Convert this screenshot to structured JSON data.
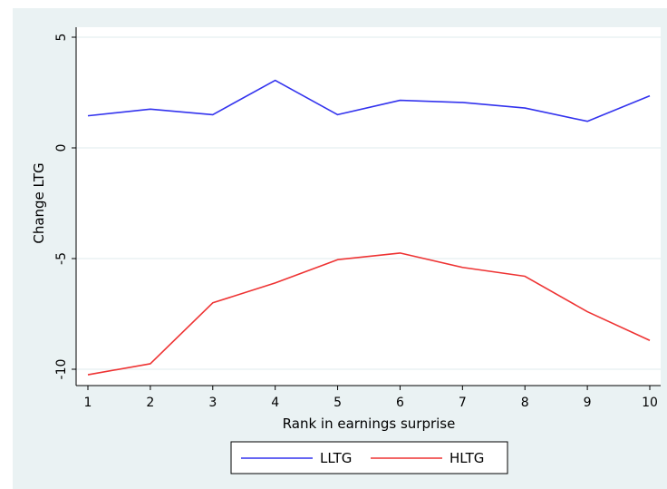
{
  "chart_data": {
    "type": "line",
    "title": "",
    "xlabel": "Rank in earnings surprise",
    "ylabel": "Change LTG",
    "x": [
      1,
      2,
      3,
      4,
      5,
      6,
      7,
      8,
      9,
      10
    ],
    "xticks": [
      "1",
      "2",
      "3",
      "4",
      "5",
      "6",
      "7",
      "8",
      "9",
      "10"
    ],
    "yticks": [
      5,
      0,
      -5,
      -10
    ],
    "ytick_labels": [
      "5",
      "0",
      "-5",
      "-10"
    ],
    "xlim": [
      1,
      10
    ],
    "ylim": [
      -10.3,
      5
    ],
    "grid": "horizontal",
    "legend_position": "bottom",
    "series": [
      {
        "name": "LLTG",
        "color": "#3333ee",
        "values": [
          1.45,
          1.75,
          1.5,
          3.05,
          1.5,
          2.15,
          2.05,
          1.8,
          1.2,
          2.35
        ]
      },
      {
        "name": "HLTG",
        "color": "#ee3333",
        "values": [
          -10.25,
          -9.75,
          -7.0,
          -6.1,
          -5.05,
          -4.75,
          -5.4,
          -5.8,
          -7.4,
          -8.7
        ]
      }
    ]
  },
  "colors": {
    "outer_background": "#eaf2f3",
    "plot_background": "#ffffff",
    "gridline": "#eaf2f3",
    "axis": "#000000",
    "legend_border": "#000000"
  }
}
